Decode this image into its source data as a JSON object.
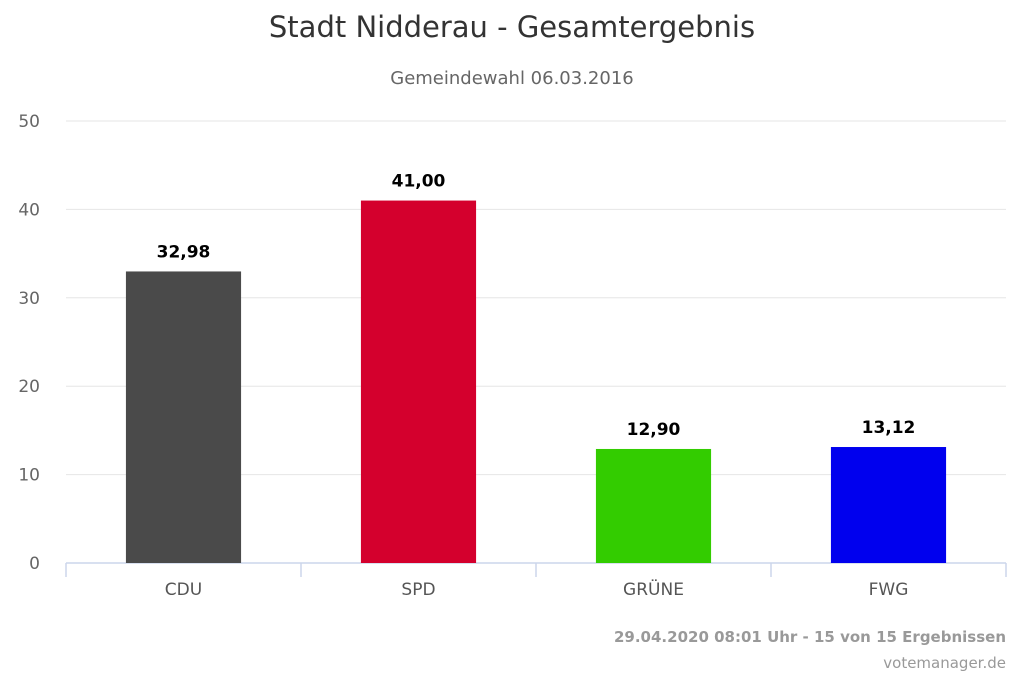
{
  "chart_data": {
    "type": "bar",
    "title": "Stadt Nidderau - Gesamtergebnis",
    "subtitle": "Gemeindewahl 06.03.2016",
    "categories": [
      "CDU",
      "SPD",
      "GRÜNE",
      "FWG"
    ],
    "values": [
      32.98,
      41.0,
      12.9,
      13.12
    ],
    "data_labels": [
      "32,98",
      "41,00",
      "12,90",
      "13,12"
    ],
    "colors": [
      "#4a4a4a",
      "#d4002d",
      "#33cc00",
      "#0000ee"
    ],
    "ylim": [
      0,
      50
    ],
    "yticks": [
      0,
      10,
      20,
      30,
      40,
      50
    ],
    "grid": true,
    "legend": false,
    "xlabel": "",
    "ylabel": ""
  },
  "footer": {
    "timestamp": "29.04.2020 08:01 Uhr - 15 von 15 Ergebnissen",
    "source": "votemanager.de"
  }
}
